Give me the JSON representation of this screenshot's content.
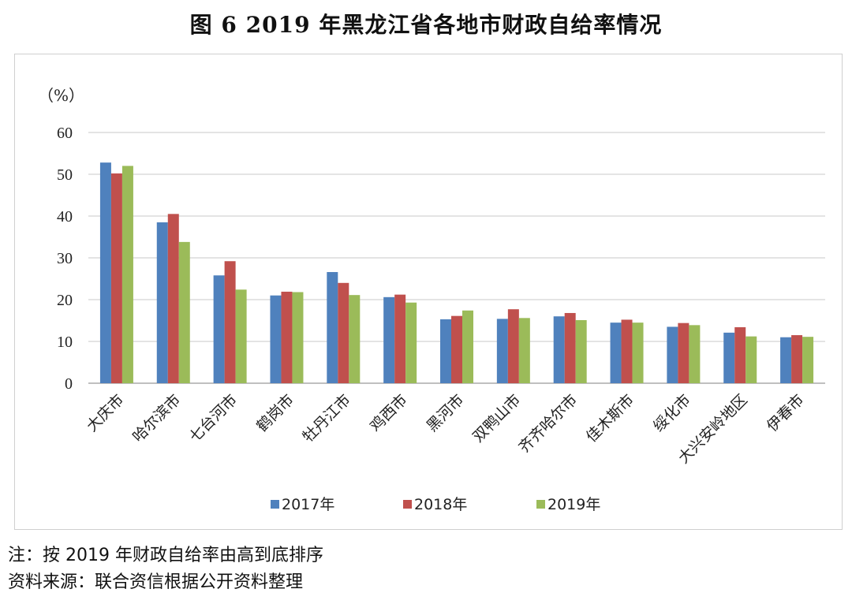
{
  "title": "图 6    2019 年黑龙江省各地市财政自给率情况",
  "notes": {
    "note1": "注：按 2019 年财政自给率由高到底排序",
    "note2": "资料来源：联合资信根据公开资料整理"
  },
  "chart_data": {
    "type": "bar",
    "title": "",
    "ylabel": "（%）",
    "xlabel": "",
    "ylim": [
      0,
      60
    ],
    "yticks": [
      0,
      10,
      20,
      30,
      40,
      50,
      60
    ],
    "grid": true,
    "legend_position": "bottom",
    "categories": [
      "大庆市",
      "哈尔滨市",
      "七台河市",
      "鹤岗市",
      "牡丹江市",
      "鸡西市",
      "黑河市",
      "双鸭山市",
      "齐齐哈尔市",
      "佳木斯市",
      "绥化市",
      "大兴安岭地区",
      "伊春市"
    ],
    "series": [
      {
        "name": "2017年",
        "color": "#4F81BD",
        "values": [
          52.8,
          38.5,
          25.8,
          21.0,
          26.6,
          20.6,
          15.3,
          15.4,
          16.0,
          14.5,
          13.5,
          12.1,
          11.0
        ]
      },
      {
        "name": "2018年",
        "color": "#C0504D",
        "values": [
          50.2,
          40.5,
          29.2,
          21.9,
          24.0,
          21.2,
          16.1,
          17.7,
          16.8,
          15.2,
          14.4,
          13.4,
          11.5
        ]
      },
      {
        "name": "2019年",
        "color": "#9BBB59",
        "values": [
          52.0,
          33.8,
          22.4,
          21.8,
          21.1,
          19.3,
          17.4,
          15.6,
          15.1,
          14.5,
          13.9,
          11.2,
          11.1
        ]
      }
    ]
  }
}
